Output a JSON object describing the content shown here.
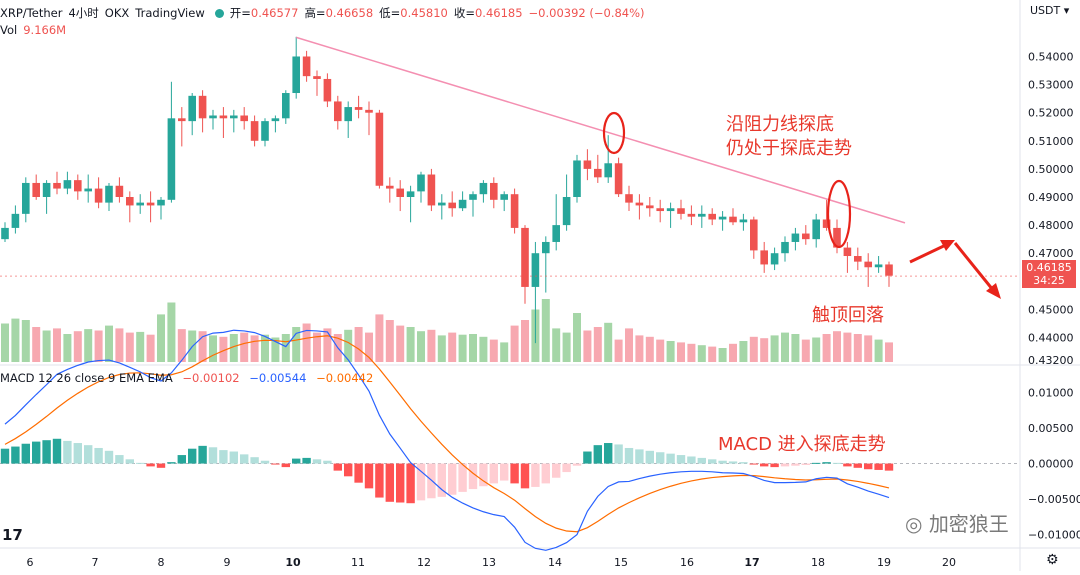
{
  "header": {
    "symbol": "XRP/Tether",
    "interval": "4小时",
    "exchange": "OKX",
    "source": "TradingView",
    "open_label": "开=",
    "open": "0.46577",
    "high_label": "高=",
    "high": "0.46658",
    "low_label": "低=",
    "low": "0.45810",
    "close_label": "收=",
    "close": "0.46185",
    "change": "−0.00392 (−0.84%)",
    "vol_label": "Vol",
    "vol_value": "9.166M",
    "macd_label": "MACD 12 26 close 9 EMA EMA",
    "macd_hist": "−0.00102",
    "macd_line": "−0.00544",
    "macd_signal": "−0.00442",
    "currency": "USDT",
    "price_tag": "0.46185",
    "countdown": "34:25"
  },
  "annotations": {
    "trendline_note_1": "沿阻力线探底",
    "trendline_note_2": "仍处于探底走势",
    "top_note": "触顶回落",
    "macd_note": "MACD 进入探底走势",
    "watermark": "加密狼王"
  },
  "colors": {
    "up": "#26a69a",
    "down": "#ef5350",
    "up_vol": "#a5d6a7",
    "down_vol": "#f7a8b0",
    "macd_line": "#2962ff",
    "signal_line": "#ff6d00",
    "trendline": "#f48fb1",
    "note": "#e8382c"
  },
  "chart_data": [
    {
      "type": "candlestick",
      "ylabel": "",
      "ylim": [
        0.432,
        0.548
      ],
      "y_ticks": [
        0.54,
        0.53,
        0.52,
        0.51,
        0.5,
        0.49,
        0.48,
        0.47,
        0.46,
        0.45,
        0.44,
        0.432
      ],
      "y_tick_labels": [
        "0.54000",
        "0.53000",
        "0.52000",
        "0.51000",
        "0.50000",
        "0.49000",
        "0.48000",
        "0.47000",
        "0.46000",
        "0.45000",
        "0.44000",
        "0.43200"
      ],
      "x_tick_labels": [
        "6",
        "7",
        "8",
        "9",
        "10",
        "11",
        "12",
        "13",
        "14",
        "15",
        "16",
        "17",
        "18",
        "19",
        "20"
      ],
      "candles": [
        [
          0.475,
          0.481,
          0.474,
          0.479
        ],
        [
          0.479,
          0.487,
          0.477,
          0.484
        ],
        [
          0.484,
          0.497,
          0.481,
          0.495
        ],
        [
          0.495,
          0.498,
          0.489,
          0.49
        ],
        [
          0.49,
          0.496,
          0.484,
          0.495
        ],
        [
          0.495,
          0.499,
          0.491,
          0.493
        ],
        [
          0.493,
          0.499,
          0.491,
          0.496
        ],
        [
          0.496,
          0.498,
          0.489,
          0.492
        ],
        [
          0.492,
          0.498,
          0.488,
          0.493
        ],
        [
          0.493,
          0.497,
          0.486,
          0.488
        ],
        [
          0.488,
          0.495,
          0.485,
          0.494
        ],
        [
          0.494,
          0.497,
          0.488,
          0.49
        ],
        [
          0.49,
          0.492,
          0.481,
          0.487
        ],
        [
          0.487,
          0.491,
          0.484,
          0.488
        ],
        [
          0.488,
          0.492,
          0.481,
          0.487
        ],
        [
          0.487,
          0.49,
          0.482,
          0.489
        ],
        [
          0.489,
          0.531,
          0.488,
          0.518
        ],
        [
          0.518,
          0.522,
          0.508,
          0.517
        ],
        [
          0.517,
          0.527,
          0.512,
          0.526
        ],
        [
          0.526,
          0.528,
          0.513,
          0.518
        ],
        [
          0.518,
          0.521,
          0.514,
          0.519
        ],
        [
          0.519,
          0.522,
          0.511,
          0.518
        ],
        [
          0.518,
          0.521,
          0.513,
          0.519
        ],
        [
          0.519,
          0.522,
          0.514,
          0.517
        ],
        [
          0.517,
          0.519,
          0.508,
          0.51
        ],
        [
          0.51,
          0.518,
          0.508,
          0.517
        ],
        [
          0.517,
          0.519,
          0.513,
          0.518
        ],
        [
          0.518,
          0.528,
          0.516,
          0.527
        ],
        [
          0.527,
          0.547,
          0.525,
          0.54
        ],
        [
          0.54,
          0.542,
          0.531,
          0.533
        ],
        [
          0.533,
          0.535,
          0.526,
          0.532
        ],
        [
          0.532,
          0.534,
          0.522,
          0.524
        ],
        [
          0.524,
          0.526,
          0.514,
          0.517
        ],
        [
          0.517,
          0.524,
          0.511,
          0.522
        ],
        [
          0.522,
          0.526,
          0.518,
          0.521
        ],
        [
          0.521,
          0.524,
          0.512,
          0.52
        ],
        [
          0.52,
          0.521,
          0.493,
          0.494
        ],
        [
          0.494,
          0.497,
          0.488,
          0.493
        ],
        [
          0.493,
          0.496,
          0.485,
          0.49
        ],
        [
          0.49,
          0.494,
          0.481,
          0.492
        ],
        [
          0.492,
          0.499,
          0.488,
          0.498
        ],
        [
          0.498,
          0.5,
          0.485,
          0.487
        ],
        [
          0.487,
          0.491,
          0.482,
          0.488
        ],
        [
          0.488,
          0.492,
          0.483,
          0.486
        ],
        [
          0.486,
          0.492,
          0.485,
          0.489
        ],
        [
          0.489,
          0.492,
          0.483,
          0.491
        ],
        [
          0.491,
          0.496,
          0.488,
          0.495
        ],
        [
          0.495,
          0.497,
          0.486,
          0.489
        ],
        [
          0.489,
          0.492,
          0.485,
          0.491
        ],
        [
          0.491,
          0.493,
          0.477,
          0.479
        ],
        [
          0.479,
          0.48,
          0.452,
          0.458
        ],
        [
          0.458,
          0.474,
          0.438,
          0.47
        ],
        [
          0.47,
          0.476,
          0.456,
          0.474
        ],
        [
          0.474,
          0.491,
          0.471,
          0.48
        ],
        [
          0.48,
          0.498,
          0.478,
          0.49
        ],
        [
          0.49,
          0.505,
          0.488,
          0.503
        ],
        [
          0.503,
          0.507,
          0.496,
          0.5
        ],
        [
          0.5,
          0.505,
          0.495,
          0.497
        ],
        [
          0.497,
          0.512,
          0.495,
          0.502
        ],
        [
          0.502,
          0.504,
          0.49,
          0.491
        ],
        [
          0.491,
          0.494,
          0.485,
          0.488
        ],
        [
          0.488,
          0.491,
          0.482,
          0.487
        ],
        [
          0.487,
          0.49,
          0.483,
          0.486
        ],
        [
          0.486,
          0.489,
          0.481,
          0.485
        ],
        [
          0.485,
          0.488,
          0.479,
          0.486
        ],
        [
          0.486,
          0.489,
          0.482,
          0.484
        ],
        [
          0.484,
          0.487,
          0.48,
          0.483
        ],
        [
          0.483,
          0.487,
          0.479,
          0.484
        ],
        [
          0.484,
          0.486,
          0.48,
          0.482
        ],
        [
          0.482,
          0.485,
          0.478,
          0.483
        ],
        [
          0.483,
          0.486,
          0.48,
          0.481
        ],
        [
          0.481,
          0.484,
          0.478,
          0.482
        ],
        [
          0.482,
          0.483,
          0.468,
          0.471
        ],
        [
          0.471,
          0.474,
          0.463,
          0.466
        ],
        [
          0.466,
          0.472,
          0.464,
          0.47
        ],
        [
          0.47,
          0.476,
          0.467,
          0.474
        ],
        [
          0.474,
          0.479,
          0.471,
          0.477
        ],
        [
          0.477,
          0.48,
          0.473,
          0.475
        ],
        [
          0.475,
          0.484,
          0.472,
          0.482
        ],
        [
          0.482,
          0.489,
          0.478,
          0.479
        ],
        [
          0.479,
          0.482,
          0.47,
          0.472
        ],
        [
          0.472,
          0.474,
          0.463,
          0.469
        ],
        [
          0.469,
          0.472,
          0.464,
          0.467
        ],
        [
          0.467,
          0.47,
          0.458,
          0.465
        ],
        [
          0.465,
          0.469,
          0.463,
          0.466
        ],
        [
          0.466,
          0.467,
          0.458,
          0.462
        ]
      ],
      "volumes": [
        0.55,
        0.62,
        0.6,
        0.5,
        0.45,
        0.48,
        0.4,
        0.44,
        0.47,
        0.45,
        0.52,
        0.48,
        0.42,
        0.43,
        0.39,
        0.68,
        0.85,
        0.47,
        0.45,
        0.44,
        0.38,
        0.36,
        0.4,
        0.42,
        0.38,
        0.39,
        0.35,
        0.4,
        0.5,
        0.55,
        0.42,
        0.48,
        0.4,
        0.46,
        0.5,
        0.42,
        0.68,
        0.6,
        0.52,
        0.5,
        0.44,
        0.46,
        0.38,
        0.42,
        0.39,
        0.4,
        0.36,
        0.32,
        0.28,
        0.52,
        0.6,
        0.75,
        0.9,
        0.48,
        0.42,
        0.7,
        0.45,
        0.5,
        0.56,
        0.32,
        0.48,
        0.38,
        0.36,
        0.32,
        0.3,
        0.28,
        0.26,
        0.24,
        0.22,
        0.2,
        0.26,
        0.3,
        0.36,
        0.34,
        0.38,
        0.42,
        0.4,
        0.32,
        0.35,
        0.4,
        0.44,
        0.42,
        0.4,
        0.38,
        0.32,
        0.28
      ]
    },
    {
      "type": "macd",
      "ylim": [
        -0.0115,
        0.0118
      ],
      "y_ticks": [
        0.01,
        0.005,
        0,
        -0.005,
        -0.01
      ],
      "y_tick_labels": [
        "0.01000",
        "0.00500",
        "0.00000",
        "−0.00500",
        "−0.01000"
      ],
      "hist": [
        0.0021,
        0.0024,
        0.0028,
        0.0031,
        0.0033,
        0.0035,
        0.0032,
        0.0029,
        0.0026,
        0.0022,
        0.0018,
        0.0012,
        0.0006,
        0.0001,
        -0.0004,
        -0.0006,
        0.0002,
        0.0012,
        0.0021,
        0.0025,
        0.0023,
        0.0019,
        0.0017,
        0.0013,
        0.0009,
        0.0004,
        -0.0001,
        -0.0005,
        0.0007,
        0.0008,
        0.0006,
        0.0004,
        -0.001,
        -0.0018,
        -0.0027,
        -0.0035,
        -0.0048,
        -0.0054,
        -0.0055,
        -0.0056,
        -0.0052,
        -0.0049,
        -0.0047,
        -0.0044,
        -0.004,
        -0.0036,
        -0.0032,
        -0.0028,
        -0.0024,
        -0.0028,
        -0.0035,
        -0.0033,
        -0.0028,
        -0.002,
        -0.0012,
        -0.0003,
        0.0017,
        0.0026,
        0.0029,
        0.0027,
        0.0022,
        0.002,
        0.0018,
        0.0016,
        0.0014,
        0.0012,
        0.001,
        0.0008,
        0.0006,
        0.0004,
        0.0003,
        0.0002,
        -0.0001,
        -0.0004,
        -0.0005,
        -0.0004,
        -0.0003,
        -0.0002,
        0.0001,
        0.0002,
        0.0001,
        -0.0004,
        -0.0006,
        -0.0008,
        -0.0009,
        -0.001
      ]
    }
  ]
}
